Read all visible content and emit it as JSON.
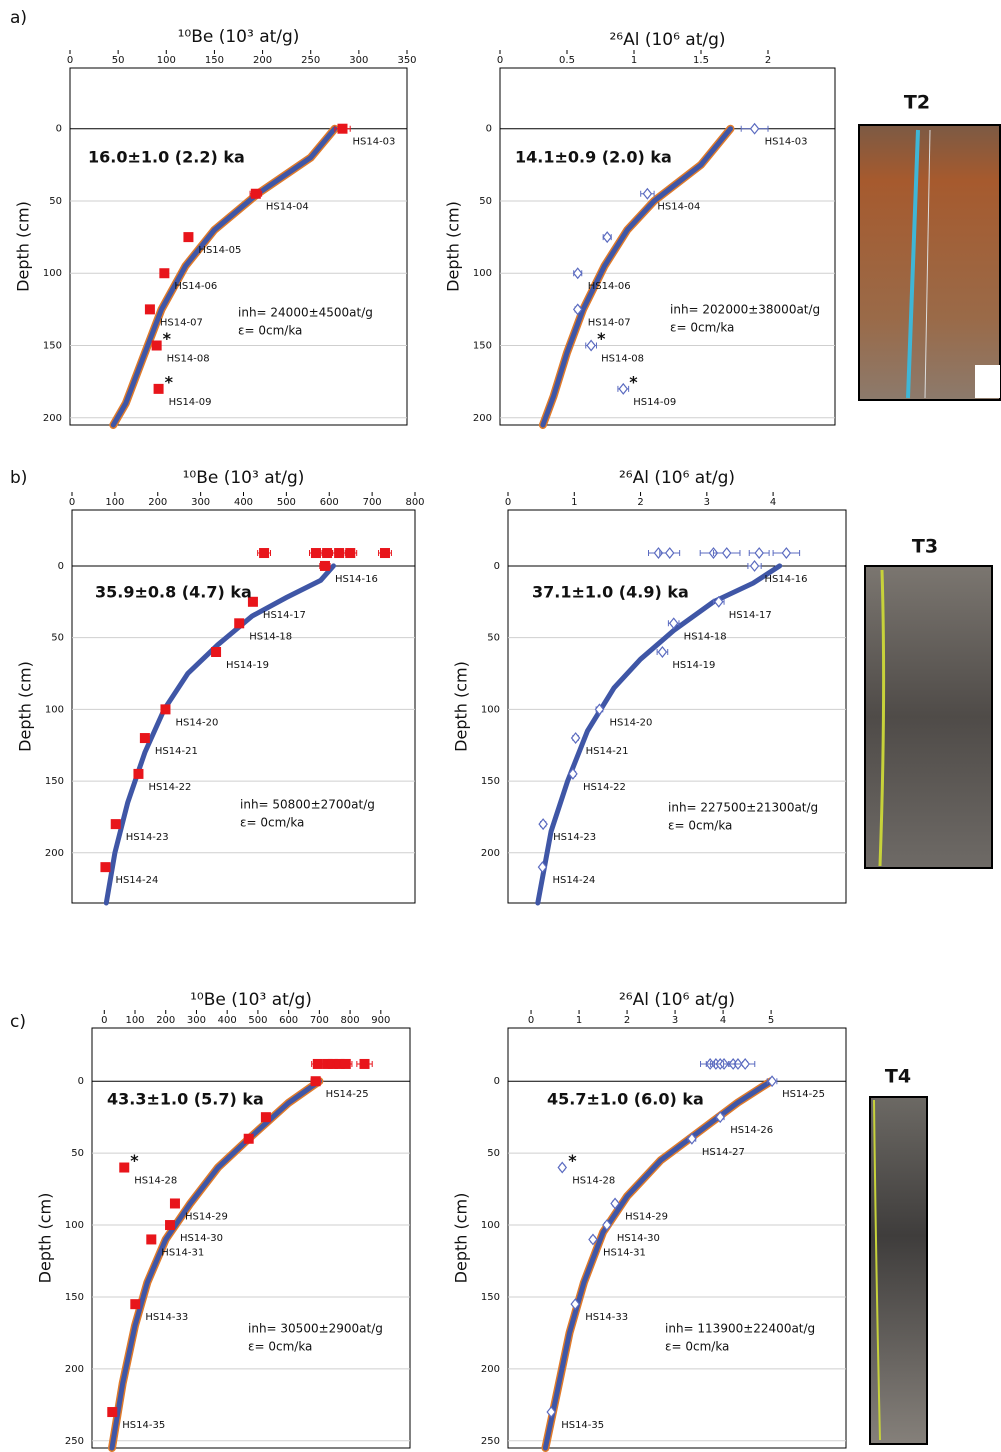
{
  "panels": [
    {
      "label": "a)",
      "site": "T2"
    },
    {
      "label": "b)",
      "site": "T3"
    },
    {
      "label": "c)",
      "site": "T4"
    }
  ],
  "chart_data": [
    {
      "type": "scatter",
      "title": "¹⁰Be (10³ at/g)",
      "y_label": "Depth (cm)",
      "xlim": [
        0,
        350
      ],
      "xticks": [
        0,
        50,
        100,
        150,
        200,
        250,
        300,
        350
      ],
      "ylim": [
        -42,
        205
      ],
      "yticks": [
        0,
        50,
        100,
        150,
        200
      ],
      "grid": true,
      "y_inverted": true,
      "outlier_mark": "*",
      "annotations": {
        "age": "16.0±1.0 (2.2) ka",
        "inheritance": "inh= 24000±4500at/g",
        "erosion": "ε= 0cm/ka"
      },
      "series": [
        {
          "type": "line",
          "color": "#3f56a6",
          "edge_color": "#e07b2a",
          "x": [
            275,
            250,
            195,
            150,
            120,
            95,
            75,
            58,
            45
          ],
          "y": [
            0,
            20,
            45,
            70,
            95,
            125,
            160,
            190,
            205
          ]
        },
        {
          "type": "scatter",
          "marker": "square",
          "color": "#e8151b",
          "x": [
            283,
            193,
            123,
            98,
            83,
            90,
            92
          ],
          "y": [
            0,
            45,
            75,
            100,
            125,
            150,
            180
          ],
          "xerr": [
            8,
            6,
            4,
            3,
            3,
            4,
            3
          ],
          "labels": [
            "HS14-03",
            "HS14-04",
            "HS14-05",
            "HS14-06",
            "HS14-07",
            "HS14-08",
            "HS14-09"
          ],
          "outlier": [
            false,
            false,
            false,
            false,
            false,
            true,
            true
          ]
        }
      ]
    },
    {
      "type": "scatter",
      "title": "²⁶Al  (10⁶ at/g)",
      "y_label": "Depth (cm)",
      "xlim": [
        0,
        2.5
      ],
      "xticks": [
        0,
        0.5,
        1,
        1.5,
        2
      ],
      "ylim": [
        -42,
        205
      ],
      "yticks": [
        0,
        50,
        100,
        150,
        200
      ],
      "grid": true,
      "y_inverted": true,
      "outlier_mark": "*",
      "annotations": {
        "age": "14.1±0.9 (2.0) ka",
        "inheritance": "inh= 202000±38000at/g",
        "erosion": "ε= 0cm/ka"
      },
      "series": [
        {
          "type": "line",
          "color": "#3f56a6",
          "edge_color": "#e07b2a",
          "x": [
            1.72,
            1.5,
            1.15,
            0.95,
            0.78,
            0.62,
            0.5,
            0.4,
            0.32
          ],
          "y": [
            0,
            25,
            50,
            70,
            95,
            125,
            155,
            185,
            205
          ]
        },
        {
          "type": "scatter",
          "marker": "diamond",
          "color": "#5b6bc0",
          "x": [
            1.9,
            1.1,
            0.8,
            0.58,
            0.58,
            0.68,
            0.92
          ],
          "y": [
            0,
            45,
            75,
            100,
            125,
            150,
            180
          ],
          "xerr": [
            0.1,
            0.05,
            0.03,
            0.03,
            0.02,
            0.04,
            0.04
          ],
          "labels": [
            "HS14-03",
            "HS14-04",
            null,
            "HS14-06",
            "HS14-07",
            "HS14-08",
            "HS14-09"
          ],
          "outlier": [
            false,
            false,
            false,
            false,
            false,
            true,
            true
          ]
        }
      ]
    },
    {
      "type": "scatter",
      "title": "¹⁰Be (10³ at/g)",
      "y_label": "Depth (cm)",
      "xlim": [
        0,
        800
      ],
      "xticks": [
        0,
        100,
        200,
        300,
        400,
        500,
        600,
        700,
        800
      ],
      "ylim": [
        -39,
        235
      ],
      "yticks": [
        0,
        50,
        100,
        150,
        200
      ],
      "grid": true,
      "y_inverted": true,
      "outlier_mark": "*",
      "annotations": {
        "age": "35.9±0.8 (4.7) ka",
        "inheritance": "inh= 50800±2700at/g",
        "erosion": "ε= 0cm/ka"
      },
      "series": [
        {
          "type": "line",
          "color": "#3f56a6",
          "x": [
            610,
            580,
            500,
            420,
            340,
            270,
            215,
            170,
            130,
            100,
            80
          ],
          "y": [
            0,
            10,
            22,
            35,
            55,
            75,
            100,
            130,
            165,
            200,
            235
          ]
        },
        {
          "type": "scatter",
          "marker": "square",
          "color": "#e8151b",
          "x": [
            448,
            569,
            595,
            623,
            649,
            730
          ],
          "y": [
            -9,
            -9,
            -9,
            -9,
            -9,
            -9
          ],
          "xerr": [
            15,
            15,
            12,
            15,
            15,
            15
          ]
        },
        {
          "type": "scatter",
          "marker": "square",
          "color": "#e8151b",
          "x": [
            590,
            422,
            390,
            336,
            218,
            170,
            155,
            102,
            78
          ],
          "y": [
            0,
            25,
            40,
            60,
            100,
            120,
            145,
            180,
            210
          ],
          "xerr": [
            12,
            8,
            8,
            6,
            5,
            4,
            4,
            3,
            3
          ],
          "labels": [
            "HS14-16",
            "HS14-17",
            "HS14-18",
            "HS14-19",
            "HS14-20",
            "HS14-21",
            "HS14-22",
            "HS14-23",
            "HS14-24"
          ]
        }
      ]
    },
    {
      "type": "scatter",
      "title": "²⁶Al  (10⁶ at/g)",
      "y_label": "Depth (cm)",
      "xlim": [
        0,
        5.1
      ],
      "xticks": [
        0,
        1,
        2,
        3,
        4
      ],
      "ylim": [
        -39,
        235
      ],
      "yticks": [
        0,
        50,
        100,
        150,
        200
      ],
      "grid": true,
      "y_inverted": true,
      "outlier_mark": "*",
      "annotations": {
        "age": "37.1±1.0 (4.9) ka",
        "inheritance": "inh= 227500±21300at/g",
        "erosion": "ε= 0cm/ka"
      },
      "series": [
        {
          "type": "line",
          "color": "#3f56a6",
          "x": [
            4.1,
            3.7,
            3.1,
            2.5,
            2.0,
            1.6,
            1.2,
            0.9,
            0.65,
            0.45
          ],
          "y": [
            0,
            12,
            25,
            45,
            65,
            85,
            115,
            150,
            185,
            235
          ]
        },
        {
          "type": "scatter",
          "marker": "diamond",
          "color": "#5b6bc0",
          "x": [
            2.27,
            2.44,
            3.1,
            3.3,
            3.79,
            4.2
          ],
          "y": [
            -9,
            -9,
            -9,
            -9,
            -9,
            -9
          ],
          "xerr": [
            0.15,
            0.15,
            0.2,
            0.2,
            0.15,
            0.2
          ]
        },
        {
          "type": "scatter",
          "marker": "diamond",
          "color": "#5b6bc0",
          "x": [
            3.72,
            3.18,
            2.5,
            2.33,
            1.38,
            1.02,
            0.98,
            0.53,
            0.52
          ],
          "y": [
            0,
            25,
            40,
            60,
            100,
            120,
            145,
            180,
            210
          ],
          "xerr": [
            0.1,
            0.08,
            0.08,
            0.08,
            0.05,
            0.04,
            0.04,
            0.04,
            0.03
          ],
          "labels": [
            "HS14-16",
            "HS14-17",
            "HS14-18",
            "HS14-19",
            "HS14-20",
            "HS14-21",
            "HS14-22",
            "HS14-23",
            "HS14-24"
          ]
        }
      ]
    },
    {
      "type": "scatter",
      "title": "¹⁰Be (10³ at/g)",
      "y_label": "Depth (cm)",
      "xlim": [
        -40,
        995
      ],
      "xticks": [
        0,
        100,
        200,
        300,
        400,
        500,
        600,
        700,
        800,
        900
      ],
      "ylim": [
        -37,
        255
      ],
      "yticks": [
        0,
        50,
        100,
        150,
        200,
        250
      ],
      "grid": true,
      "y_inverted": true,
      "outlier_mark": "*",
      "annotations": {
        "age": "43.3±1.0 (5.7) ka",
        "inheritance": "inh= 30500±2900at/g",
        "erosion": "ε= 0cm/ka"
      },
      "series": [
        {
          "type": "line",
          "color": "#3f56a6",
          "edge_color": "#e07b2a",
          "x": [
            700,
            600,
            470,
            370,
            280,
            200,
            140,
            100,
            60,
            25
          ],
          "y": [
            0,
            15,
            40,
            60,
            85,
            110,
            140,
            170,
            210,
            255
          ]
        },
        {
          "type": "scatter",
          "marker": "square",
          "color": "#e8151b",
          "x": [
            695,
            727,
            744,
            766,
            786,
            847
          ],
          "y": [
            -12,
            -12,
            -12,
            -12,
            -12,
            -12
          ],
          "xerr": [
            20,
            20,
            20,
            20,
            20,
            25
          ]
        },
        {
          "type": "scatter",
          "marker": "square",
          "color": "#e8151b",
          "x": [
            688,
            526,
            470,
            65,
            230,
            214,
            153,
            101,
            26
          ],
          "y": [
            0,
            25,
            40,
            60,
            85,
            100,
            110,
            155,
            230
          ],
          "xerr": [
            15,
            10,
            10,
            5,
            8,
            8,
            5,
            5,
            3
          ],
          "labels": [
            "HS14-25",
            null,
            null,
            "HS14-28",
            "HS14-29",
            "HS14-30",
            "HS14-31",
            "HS14-33",
            "HS14-35"
          ],
          "outlier": [
            false,
            false,
            false,
            true,
            false,
            false,
            false,
            false,
            false
          ]
        }
      ]
    },
    {
      "type": "scatter",
      "title": "²⁶Al  (10⁶ at/g)",
      "y_label": "Depth (cm)",
      "xlim": [
        -0.48,
        6.56
      ],
      "xticks": [
        0,
        1,
        2,
        3,
        4,
        5
      ],
      "ylim": [
        -37,
        255
      ],
      "yticks": [
        0,
        50,
        100,
        150,
        200,
        250
      ],
      "grid": true,
      "y_inverted": true,
      "outlier_mark": "*",
      "annotations": {
        "age": "45.7±1.0 (6.0) ka",
        "inheritance": "inh= 113900±22400at/g",
        "erosion": "ε= 0cm/ka"
      },
      "series": [
        {
          "type": "line",
          "color": "#3f56a6",
          "edge_color": "#e07b2a",
          "x": [
            5.0,
            4.3,
            3.5,
            2.7,
            2.0,
            1.5,
            1.1,
            0.8,
            0.55,
            0.3
          ],
          "y": [
            0,
            15,
            35,
            55,
            80,
            105,
            140,
            175,
            215,
            255
          ]
        },
        {
          "type": "scatter",
          "marker": "diamond",
          "color": "#5b6bc0",
          "x": [
            3.73,
            3.85,
            3.94,
            4.02,
            4.21,
            4.31,
            4.46
          ],
          "y": [
            -12,
            -12,
            -12,
            -12,
            -12,
            -12,
            -12
          ],
          "xerr": [
            0.2,
            0.2,
            0.2,
            0.2,
            0.2,
            0.2,
            0.2
          ]
        },
        {
          "type": "scatter",
          "marker": "diamond",
          "color": "#5b6bc0",
          "x": [
            5.02,
            3.94,
            3.35,
            0.65,
            1.75,
            1.58,
            1.29,
            0.92,
            0.42
          ],
          "y": [
            0,
            25,
            40,
            60,
            85,
            100,
            110,
            155,
            230
          ],
          "xerr": [
            0.1,
            0.08,
            0.08,
            0.05,
            0.05,
            0.05,
            0.05,
            0.04,
            0.03
          ],
          "labels": [
            "HS14-25",
            "HS14-26",
            "HS14-27",
            "HS14-28",
            "HS14-29",
            "HS14-30",
            "HS14-31",
            "HS14-33",
            "HS14-35"
          ],
          "outlier": [
            false,
            false,
            false,
            true,
            false,
            false,
            false,
            false,
            false
          ]
        }
      ]
    }
  ]
}
